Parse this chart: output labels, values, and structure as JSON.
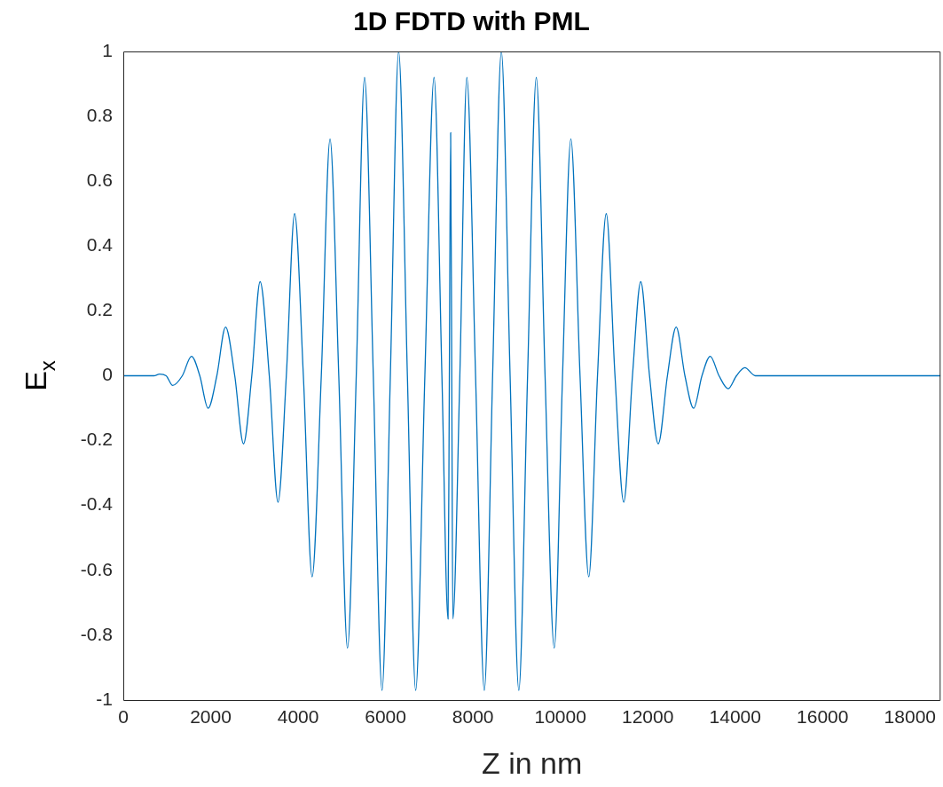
{
  "chart_data": {
    "type": "line",
    "title": "1D FDTD with PML",
    "xlabel": "Z in nm",
    "ylabel": "E$_{x}$",
    "x": [
      0,
      700,
      830,
      980,
      1130,
      1350,
      1560,
      1750,
      1940,
      2140,
      2340,
      2550,
      2750,
      2940,
      3130,
      3340,
      3540,
      3730,
      3920,
      4120,
      4320,
      4530,
      4730,
      4930,
      5130,
      5330,
      5520,
      5720,
      5920,
      6110,
      6300,
      6500,
      6690,
      6900,
      7110,
      7290,
      7430,
      7460,
      7490,
      7515,
      7540,
      7700,
      7860,
      8060,
      8260,
      8450,
      8650,
      8850,
      9050,
      9250,
      9450,
      9650,
      9860,
      10050,
      10240,
      10450,
      10650,
      10850,
      11050,
      11250,
      11450,
      11650,
      11840,
      12040,
      12240,
      12450,
      12650,
      12850,
      13050,
      13240,
      13430,
      13630,
      13840,
      14030,
      14220,
      14460,
      18700
    ],
    "series": [
      {
        "color": "#0072bd",
        "values": [
          0,
          0,
          0.005,
          0,
          -0.03,
          0,
          0.06,
          0,
          -0.1,
          0,
          0.15,
          0,
          -0.21,
          0,
          0.29,
          0,
          -0.39,
          0,
          0.5,
          0,
          -0.62,
          0,
          0.73,
          0,
          -0.84,
          0,
          0.92,
          0,
          -0.97,
          0,
          1,
          0,
          -0.97,
          0,
          0.92,
          0,
          -0.75,
          0,
          0.75,
          0,
          -0.75,
          0,
          0.92,
          0,
          -0.97,
          0,
          1,
          0,
          -0.97,
          0,
          0.92,
          0,
          -0.84,
          0,
          0.73,
          0,
          -0.62,
          0,
          0.5,
          0,
          -0.39,
          0,
          0.29,
          0,
          -0.21,
          0,
          0.15,
          0,
          -0.1,
          0,
          0.06,
          0,
          -0.04,
          0,
          0.025,
          0,
          0
        ]
      }
    ],
    "xlim": [
      0,
      18700
    ],
    "xticks": [
      0,
      2000,
      4000,
      6000,
      8000,
      10000,
      12000,
      14000,
      16000,
      18000
    ],
    "ylim": [
      -1,
      1
    ],
    "yticks": [
      -1,
      -0.8,
      -0.6,
      -0.4,
      -0.2,
      0,
      0.2,
      0.4,
      0.6,
      0.8,
      1
    ],
    "grid": false,
    "legend": false,
    "marker": "none",
    "line_style": "solid"
  }
}
